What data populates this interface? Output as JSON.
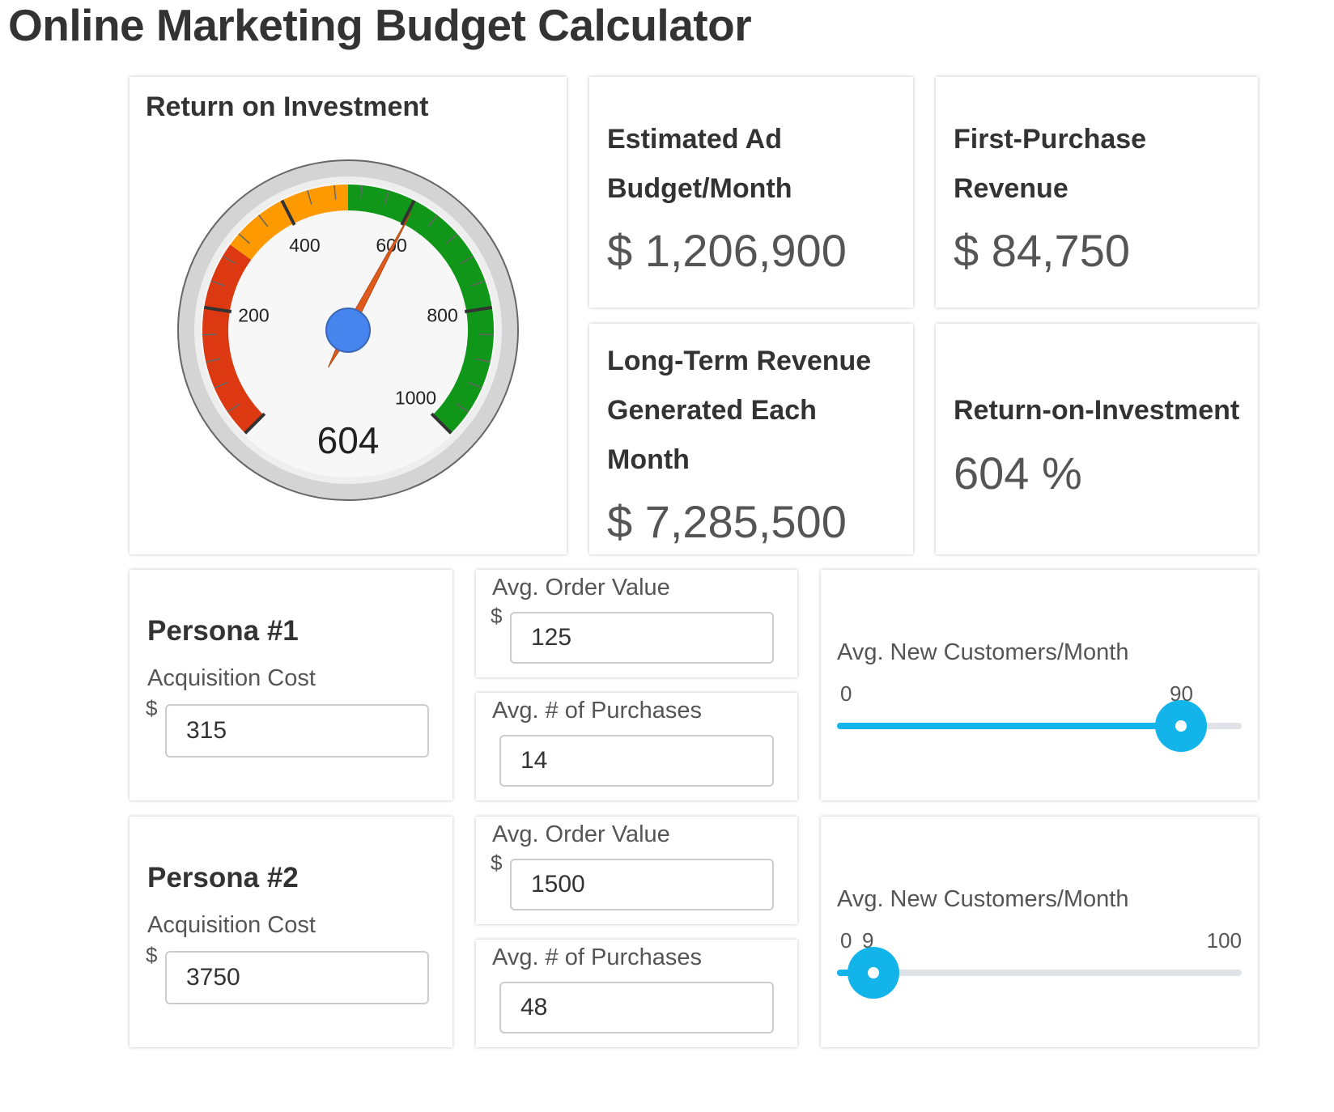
{
  "page": {
    "title": "Online Marketing Budget Calculator"
  },
  "gauge": {
    "title": "Return on Investment",
    "value": 604,
    "value_label": "604",
    "min": 0,
    "max": 1000,
    "tick_labels": [
      "200",
      "400",
      "600",
      "800",
      "1000"
    ],
    "bands": [
      {
        "from": 0,
        "to": 300,
        "color": "#dc3912"
      },
      {
        "from": 300,
        "to": 500,
        "color": "#ff9900"
      },
      {
        "from": 500,
        "to": 1000,
        "color": "#109618"
      }
    ],
    "needle_color": "#e05a1e",
    "hub_color": "#4684ee"
  },
  "kpis": {
    "ad_budget": {
      "title_line1": "Estimated Ad",
      "title_line2": "Budget/Month",
      "value": "$ 1,206,900"
    },
    "first_purchase": {
      "title_line1": "First-Purchase",
      "title_line2": "Revenue",
      "value": "$ 84,750"
    },
    "long_term": {
      "title_line1": "Long-Term Revenue",
      "title_line2": "Generated Each",
      "title_line3": "Month",
      "value": "$ 7,285,500"
    },
    "roi": {
      "title": "Return-on-Investment",
      "value": "604 %"
    }
  },
  "personas": [
    {
      "title": "Persona #1",
      "acq_label": "Acquisition Cost",
      "currency": "$",
      "acq_value": "315",
      "aov_label": "Avg. Order Value",
      "aov_currency": "$",
      "aov_value": "125",
      "purchases_label": "Avg. # of Purchases",
      "purchases_value": "14",
      "slider_label": "Avg. New Customers/Month",
      "slider_min_label": "0",
      "slider_value_label": "90",
      "slider_max_label": "",
      "slider_fraction": 0.85
    },
    {
      "title": "Persona #2",
      "acq_label": "Acquisition Cost",
      "currency": "$",
      "acq_value": "3750",
      "aov_label": "Avg. Order Value",
      "aov_currency": "$",
      "aov_value": "1500",
      "purchases_label": "Avg. # of Purchases",
      "purchases_value": "48",
      "slider_label": "Avg. New Customers/Month",
      "slider_min_label": "0",
      "slider_value_label": "9",
      "slider_max_label": "100",
      "slider_fraction": 0.09
    }
  ],
  "colors": {
    "accent": "#13b4ea"
  }
}
